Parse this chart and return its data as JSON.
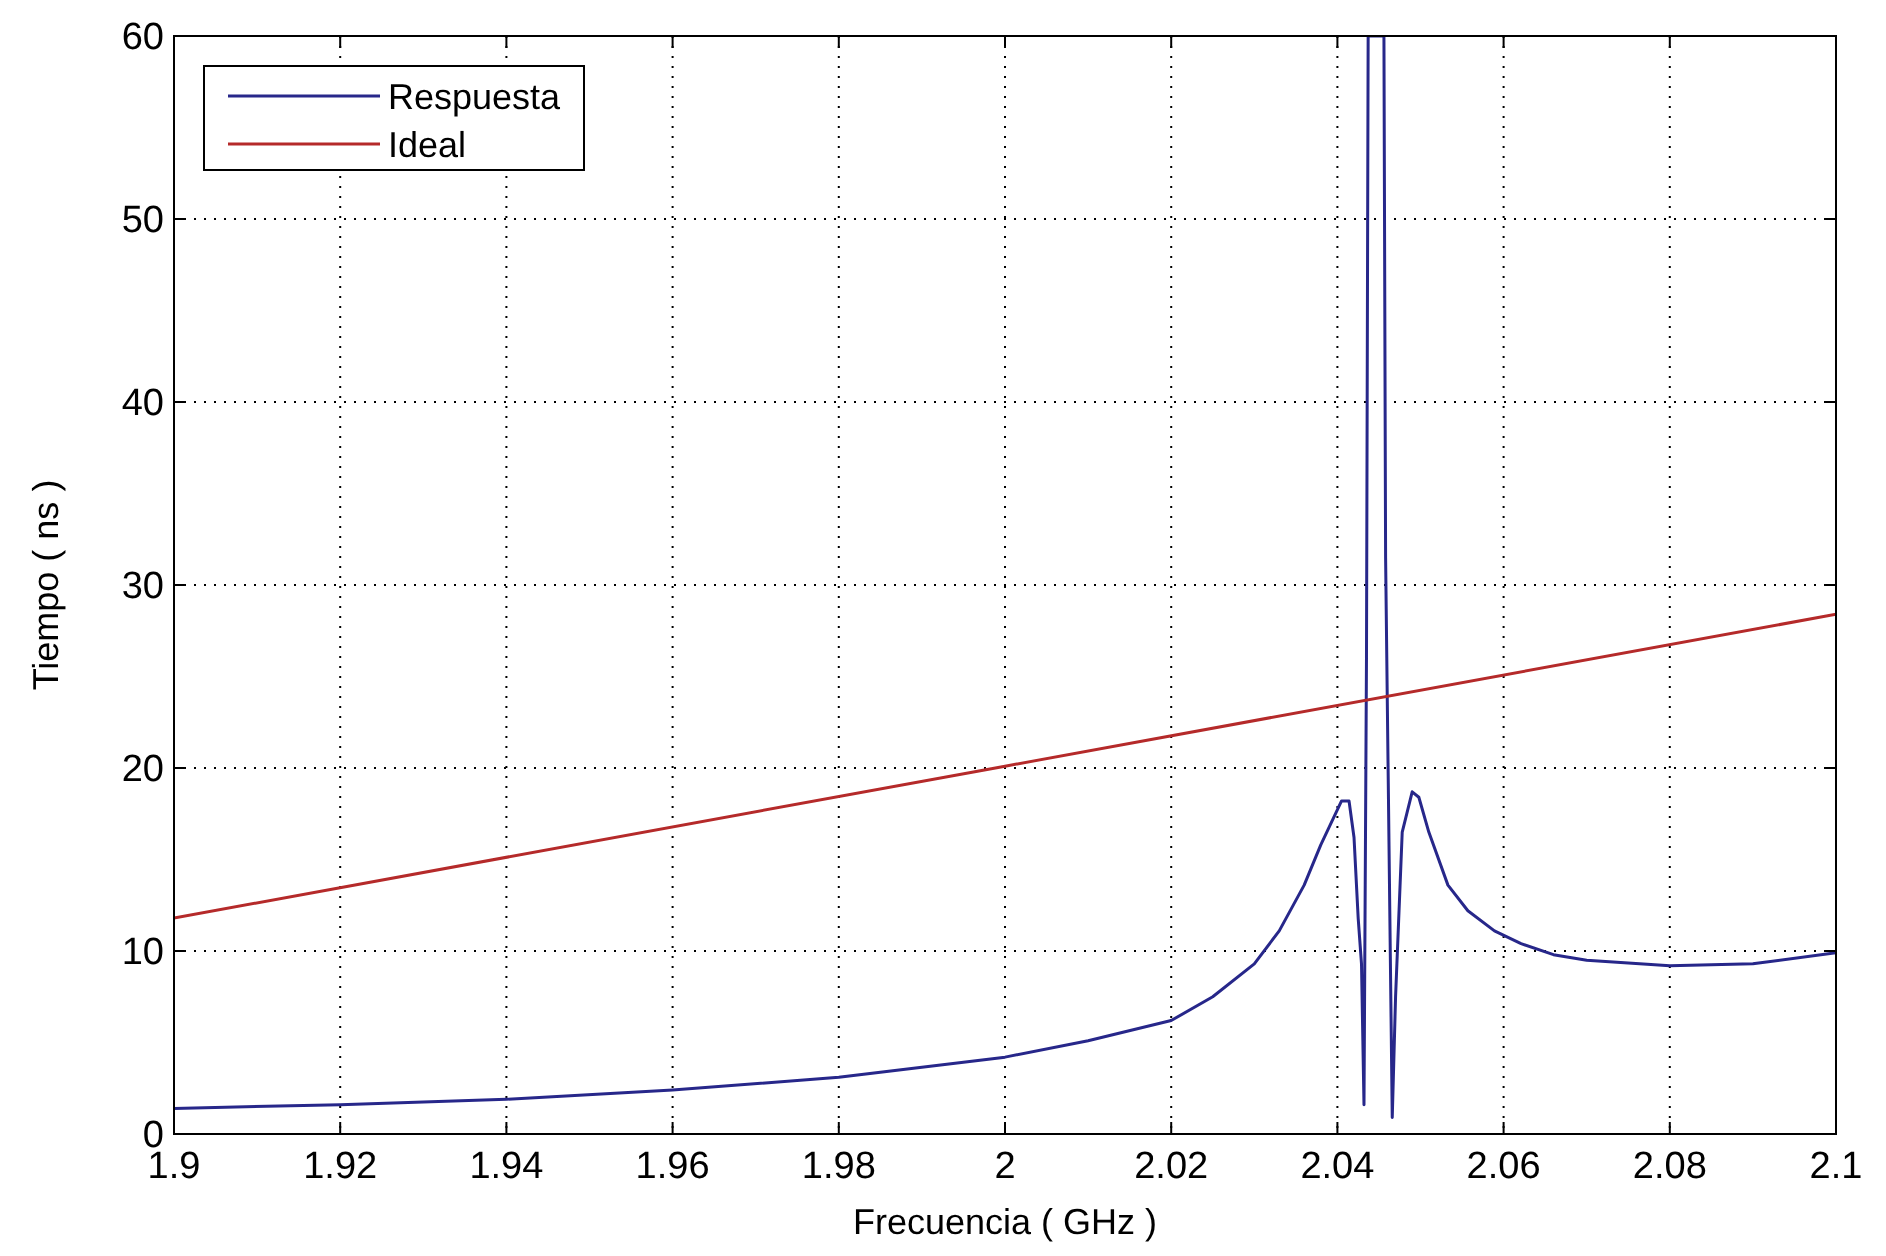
{
  "chart_data": {
    "type": "line",
    "xlabel": "Frecuencia ( GHz )",
    "ylabel": "Tiempo ( ns )",
    "xlim": [
      1.9,
      2.1
    ],
    "xticks": [
      1.9,
      1.92,
      1.94,
      1.96,
      1.98,
      2,
      2.02,
      2.04,
      2.06,
      2.08,
      2.1
    ],
    "ylim": [
      0,
      60
    ],
    "yticks": [
      0,
      10,
      20,
      30,
      40,
      50,
      60
    ],
    "grid": true,
    "legend": "top left",
    "line_style": "solid",
    "marker": "none",
    "series": [
      {
        "name": "Respuesta",
        "color": "#27278a",
        "x": [
          1.9,
          1.92,
          1.94,
          1.96,
          1.98,
          2.0,
          2.01,
          2.02,
          2.025,
          2.03,
          2.033,
          2.036,
          2.038,
          2.0405,
          2.0414,
          2.042,
          2.0425,
          2.0429,
          2.0432,
          2.0435,
          2.0437,
          2.044,
          2.0456,
          2.0458,
          2.0466,
          2.047,
          2.0478,
          2.049,
          2.0498,
          2.051,
          2.0533,
          2.0557,
          2.0589,
          2.0621,
          2.066,
          2.07,
          2.08,
          2.09,
          2.1
        ],
        "values": [
          1.4,
          1.6,
          1.9,
          2.4,
          3.1,
          4.2,
          5.1,
          6.2,
          7.5,
          9.3,
          11.1,
          13.6,
          15.8,
          18.2,
          18.2,
          16.2,
          11.8,
          9.3,
          1.6,
          26,
          60,
          60,
          60,
          31.5,
          0.9,
          7.5,
          16.5,
          18.7,
          18.4,
          16.5,
          13.6,
          12.2,
          11.1,
          10.4,
          9.8,
          9.5,
          9.2,
          9.3,
          9.9
        ]
      },
      {
        "name": "Ideal",
        "color": "#b52a2a",
        "x": [
          1.9,
          2.0,
          2.1
        ],
        "values": [
          11.8,
          20.1,
          28.4
        ]
      }
    ]
  }
}
